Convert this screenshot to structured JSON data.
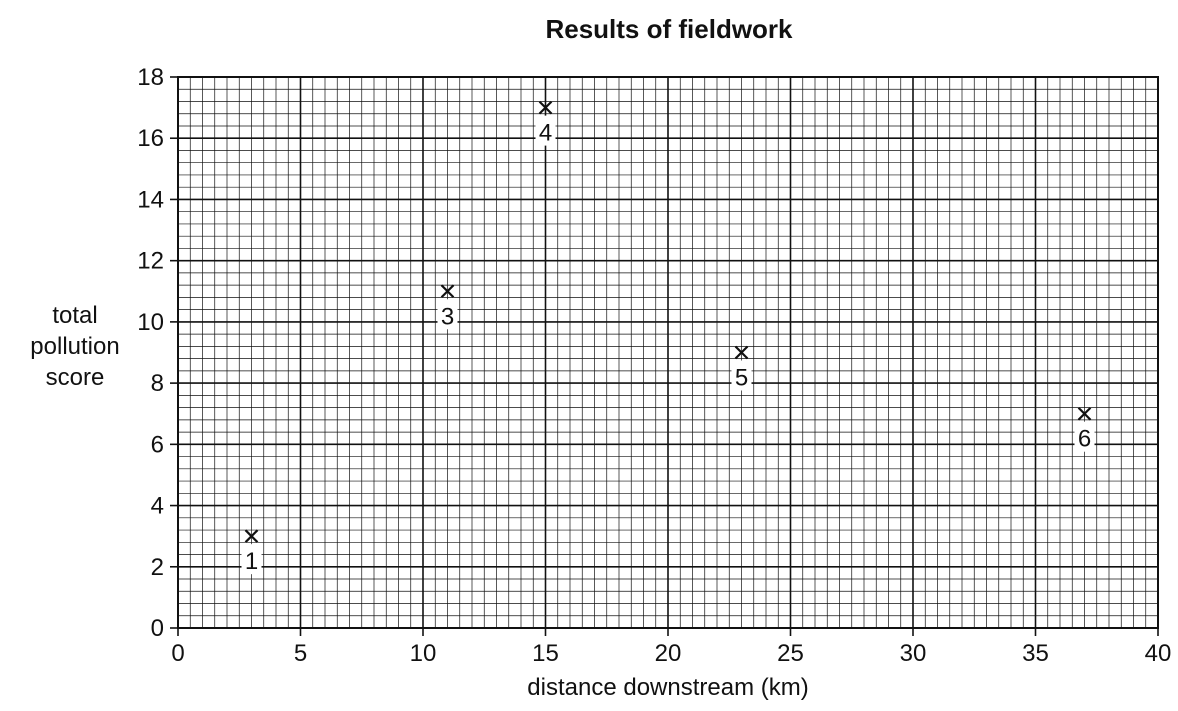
{
  "chart_data": {
    "type": "scatter",
    "title": "Results of fieldwork",
    "xlabel": "distance downstream (km)",
    "ylabel": [
      "total",
      "pollution",
      "score"
    ],
    "xlim": [
      0,
      40
    ],
    "ylim": [
      0,
      18
    ],
    "xticks": [
      0,
      5,
      10,
      15,
      20,
      25,
      30,
      35,
      40
    ],
    "yticks": [
      0,
      2,
      4,
      6,
      8,
      10,
      12,
      14,
      16,
      18
    ],
    "grid": true,
    "marker": "x",
    "points": [
      {
        "label": "1",
        "x": 3,
        "y": 3
      },
      {
        "label": "3",
        "x": 11,
        "y": 11
      },
      {
        "label": "4",
        "x": 15,
        "y": 17
      },
      {
        "label": "5",
        "x": 23,
        "y": 9
      },
      {
        "label": "6",
        "x": 37,
        "y": 7
      }
    ]
  }
}
